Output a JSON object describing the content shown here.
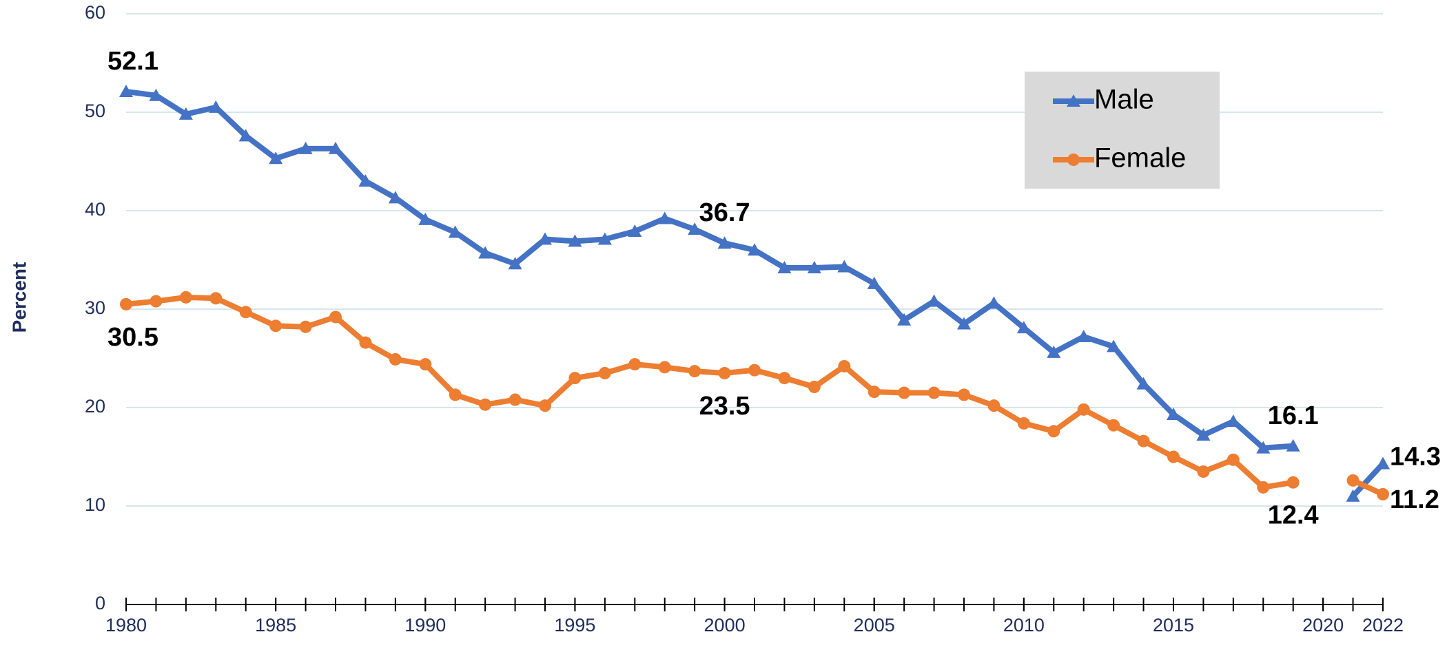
{
  "chart_data": {
    "type": "line",
    "y_label": "Percent",
    "x": [
      1980,
      1981,
      1982,
      1983,
      1984,
      1985,
      1986,
      1987,
      1988,
      1989,
      1990,
      1991,
      1992,
      1993,
      1994,
      1995,
      1996,
      1997,
      1998,
      1999,
      2000,
      2001,
      2002,
      2003,
      2004,
      2005,
      2006,
      2007,
      2008,
      2009,
      2010,
      2011,
      2012,
      2013,
      2014,
      2015,
      2016,
      2017,
      2018,
      2019,
      2020,
      2021,
      2022
    ],
    "series": [
      {
        "name": "Male",
        "color": "#4472c4",
        "marker": "triangle",
        "values": [
          52.1,
          51.7,
          49.8,
          50.5,
          47.6,
          45.3,
          46.3,
          46.3,
          43.0,
          41.3,
          39.1,
          37.8,
          35.7,
          34.6,
          37.1,
          36.9,
          37.1,
          37.9,
          39.2,
          38.1,
          36.7,
          36.0,
          34.2,
          34.2,
          34.3,
          32.6,
          28.9,
          30.8,
          28.5,
          30.6,
          28.1,
          25.6,
          27.2,
          26.2,
          22.4,
          19.3,
          17.2,
          18.6,
          15.9,
          16.1,
          null,
          11.0,
          14.3
        ]
      },
      {
        "name": "Female",
        "color": "#ed7d31",
        "marker": "circle",
        "values": [
          30.5,
          30.8,
          31.2,
          31.1,
          29.7,
          28.3,
          28.2,
          29.2,
          26.6,
          24.9,
          24.4,
          21.3,
          20.3,
          20.8,
          20.2,
          23.0,
          23.5,
          24.4,
          24.1,
          23.7,
          23.5,
          23.8,
          23.0,
          22.1,
          24.2,
          21.6,
          21.5,
          21.5,
          21.3,
          20.2,
          18.4,
          17.6,
          19.8,
          18.2,
          16.6,
          15.0,
          13.5,
          14.7,
          11.9,
          12.4,
          null,
          12.6,
          11.2
        ]
      }
    ],
    "labels_at": [
      1980,
      2000,
      2019,
      2022
    ],
    "xlim": [
      1980,
      2022
    ],
    "xticks": [
      1980,
      1985,
      1990,
      1995,
      2000,
      2005,
      2010,
      2015,
      2020,
      2022
    ],
    "ylim": [
      0,
      60
    ],
    "yticks": [
      0,
      10,
      20,
      30,
      40,
      50,
      60
    ],
    "grid": true,
    "legend": "upper right"
  }
}
